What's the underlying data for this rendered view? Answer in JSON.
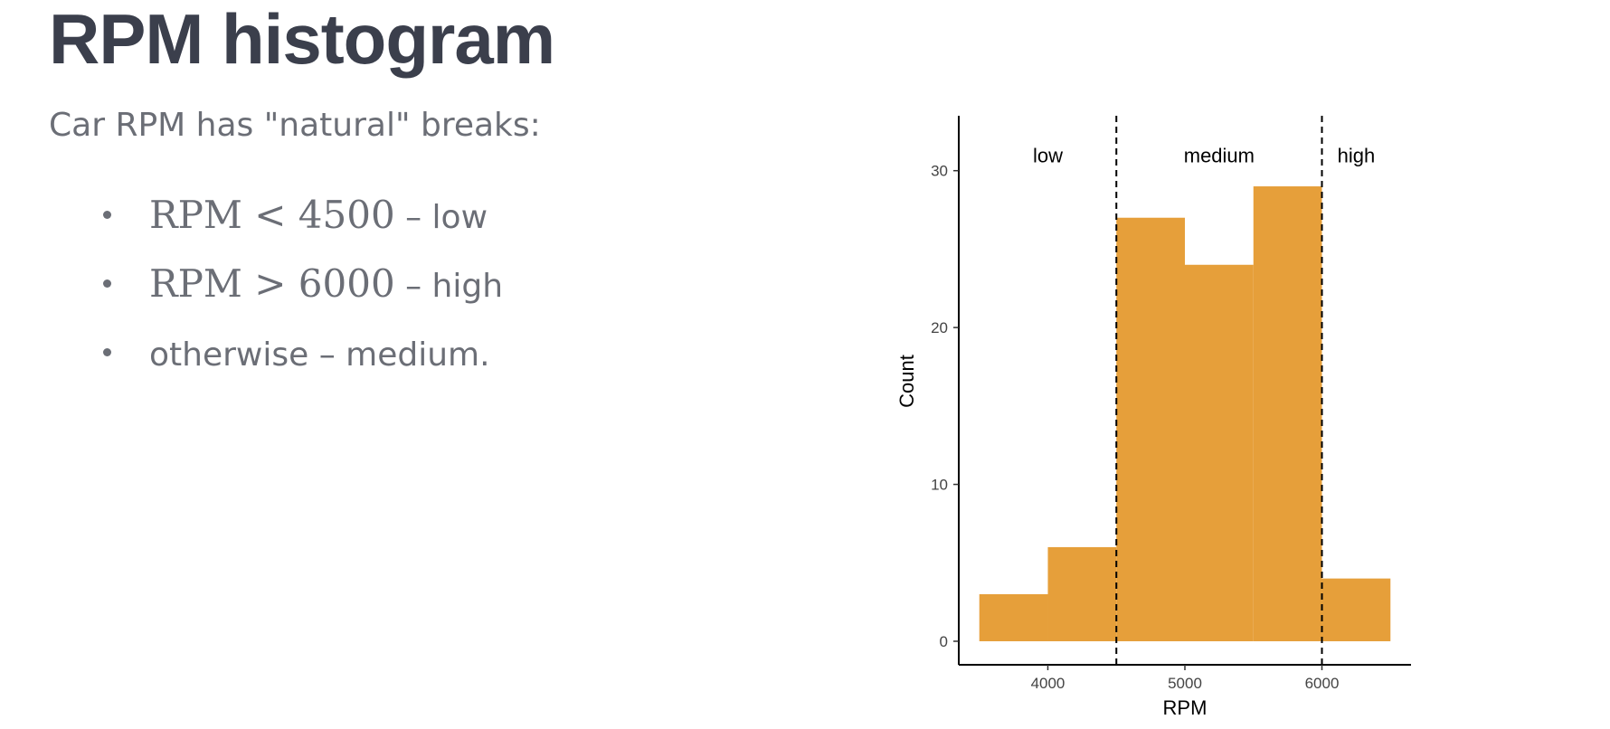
{
  "slide": {
    "title": "RPM histogram",
    "intro": "Car RPM has \"natural\" breaks:",
    "bullets": [
      {
        "math": "RPM < 4500",
        "text": " – low"
      },
      {
        "math": "RPM > 6000",
        "text": " – high"
      },
      {
        "math": "",
        "text": "otherwise – medium."
      }
    ]
  },
  "chart_data": {
    "type": "bar",
    "xlabel": "RPM",
    "ylabel": "Count",
    "xlim": [
      3350,
      6650
    ],
    "ylim": [
      -1.5,
      33.5
    ],
    "x_ticks": [
      4000,
      5000,
      6000
    ],
    "y_ticks": [
      0,
      10,
      20,
      30
    ],
    "bins": [
      {
        "x0": 3500,
        "x1": 4000,
        "count": 3
      },
      {
        "x0": 4000,
        "x1": 4500,
        "count": 6
      },
      {
        "x0": 4500,
        "x1": 5000,
        "count": 27
      },
      {
        "x0": 5000,
        "x1": 5500,
        "count": 24
      },
      {
        "x0": 5500,
        "x1": 6000,
        "count": 29
      },
      {
        "x0": 6000,
        "x1": 6500,
        "count": 4
      }
    ],
    "cutoffs": [
      4500,
      6000
    ],
    "region_labels": [
      {
        "text": "low",
        "x": 4000
      },
      {
        "text": "medium",
        "x": 5250
      },
      {
        "text": "high",
        "x": 6250
      }
    ],
    "region_label_y": 31,
    "bar_color": "#e69f3a",
    "grid": false
  }
}
